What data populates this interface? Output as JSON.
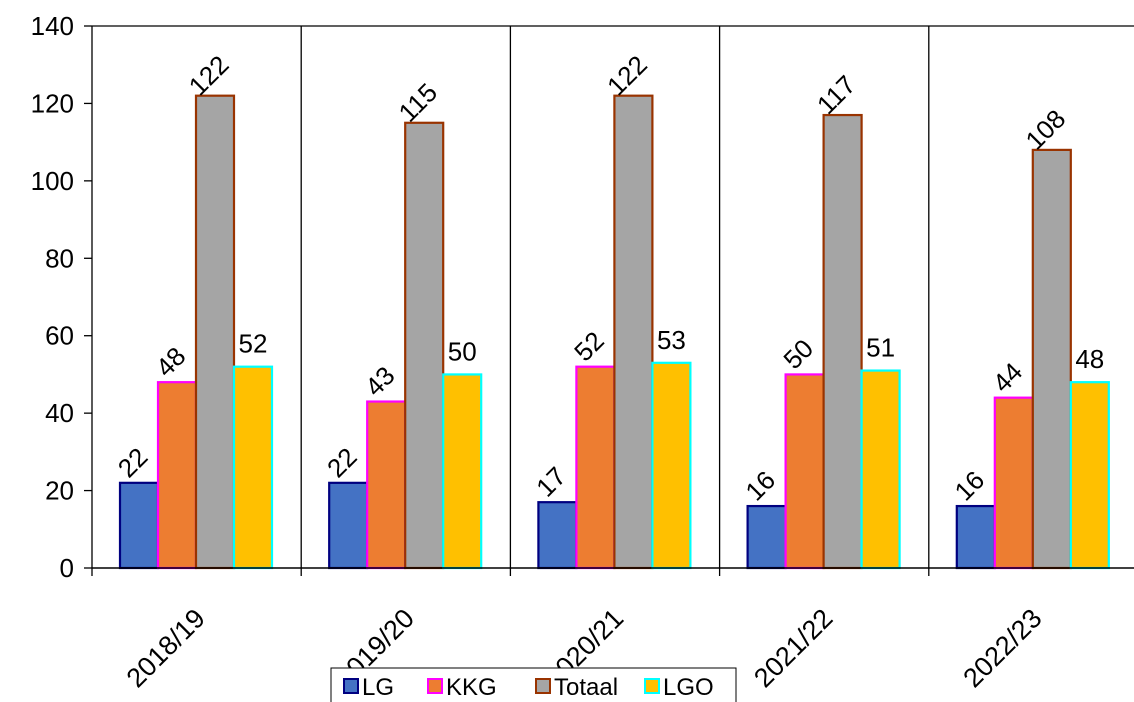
{
  "chart_data": {
    "type": "bar",
    "title": "",
    "xlabel": "",
    "ylabel": "",
    "categories": [
      "2018/19",
      "2019/20",
      "2020/21",
      "2021/22",
      "2022/23"
    ],
    "series": [
      {
        "name": "LG",
        "values": [
          22,
          22,
          17,
          16,
          16
        ],
        "fill": "#4472C4",
        "stroke": "#000080"
      },
      {
        "name": "KKG",
        "values": [
          48,
          43,
          52,
          50,
          44
        ],
        "fill": "#ED7D31",
        "stroke": "#FF00FF"
      },
      {
        "name": "Totaal",
        "values": [
          122,
          115,
          122,
          117,
          108
        ],
        "fill": "#A5A5A5",
        "stroke": "#993300"
      },
      {
        "name": "LGO",
        "values": [
          52,
          50,
          53,
          51,
          48
        ],
        "fill": "#FFC000",
        "stroke": "#00FFFF"
      }
    ],
    "ylim": [
      0,
      140
    ],
    "yticks": [
      0,
      20,
      40,
      60,
      80,
      100,
      120,
      140
    ],
    "grid": "vertical-category-lines",
    "legend_position": "bottom"
  }
}
